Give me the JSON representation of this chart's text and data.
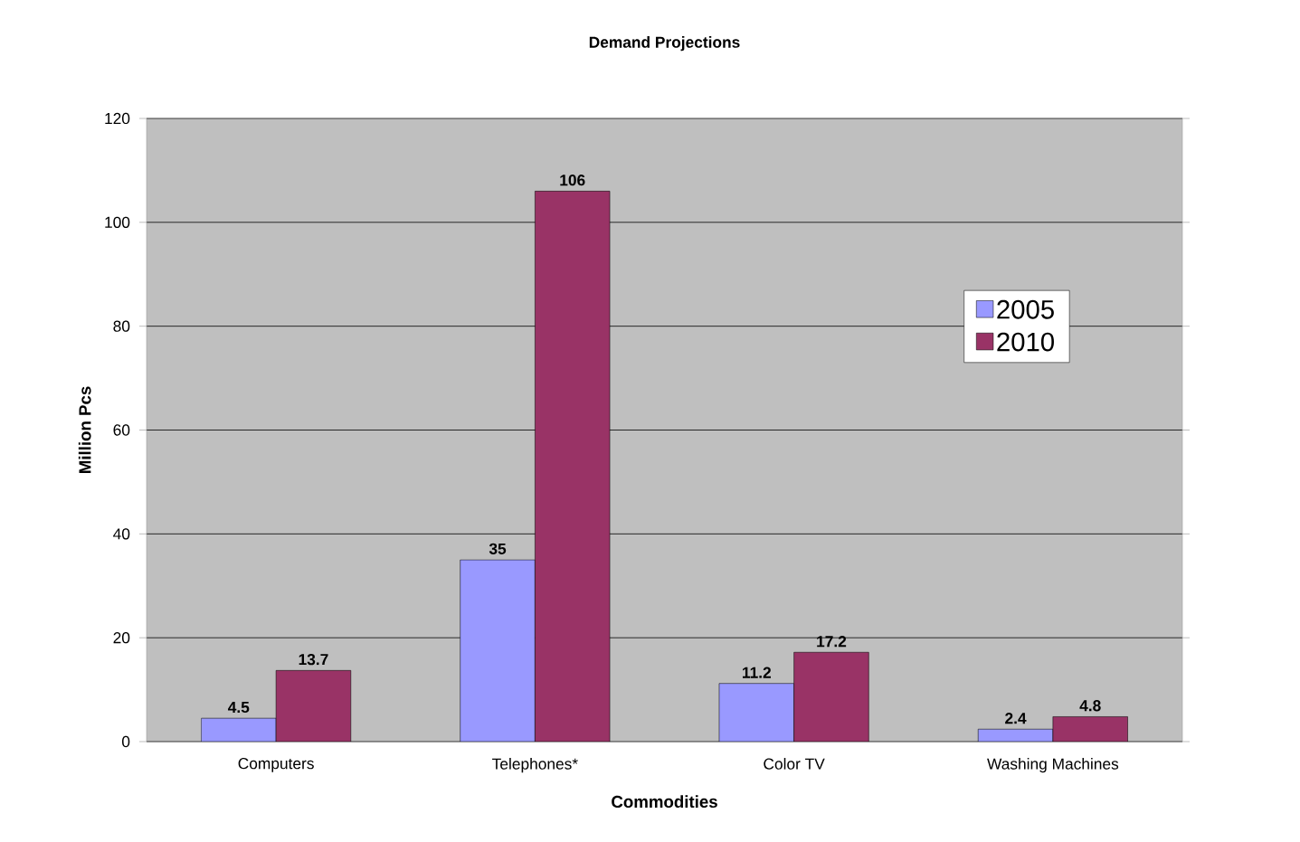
{
  "chart_data": {
    "type": "bar",
    "title": "Demand Projections",
    "xlabel": "Commodities",
    "ylabel": "Million Pcs",
    "categories": [
      "Computers",
      "Telephones*",
      "Color TV",
      "Washing Machines"
    ],
    "series": [
      {
        "name": "2005",
        "color": "#9999ff",
        "values": [
          4.5,
          35,
          11.2,
          2.4
        ]
      },
      {
        "name": "2010",
        "color": "#993366",
        "values": [
          13.7,
          106,
          17.2,
          4.8
        ]
      }
    ],
    "ylim": [
      0,
      120
    ],
    "yticks": [
      0,
      20,
      40,
      60,
      80,
      100,
      120
    ],
    "grid": "y",
    "legend": "right",
    "data_labels": true
  }
}
